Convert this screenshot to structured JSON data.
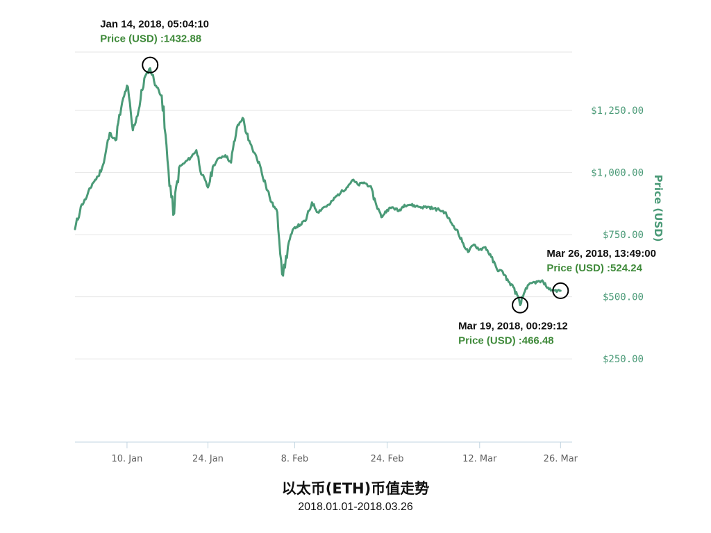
{
  "chart_data": {
    "type": "line",
    "title": "以太币(ETH)币值走势",
    "subtitle": "2018.01.01-2018.03.26",
    "ylabel": "Price (USD)",
    "xlabel": "",
    "y_axis_side": "right",
    "grid": true,
    "ylim": [
      -85,
      1485
    ],
    "xlim": [
      "2018-01-01",
      "2018-03-28"
    ],
    "y_ticks": [
      {
        "value": 250,
        "label": "$250.00"
      },
      {
        "value": 500,
        "label": "$500.00"
      },
      {
        "value": 750,
        "label": "$750.00"
      },
      {
        "value": 1000,
        "label": "$1,000.00"
      },
      {
        "value": 1250,
        "label": "$1,250.00"
      }
    ],
    "x_ticks": [
      {
        "date": "2018-01-10",
        "label": "10. Jan"
      },
      {
        "date": "2018-01-24",
        "label": "24. Jan"
      },
      {
        "date": "2018-02-08",
        "label": "8. Feb"
      },
      {
        "date": "2018-02-24",
        "label": "24. Feb"
      },
      {
        "date": "2018-03-12",
        "label": "12. Mar"
      },
      {
        "date": "2018-03-26",
        "label": "26. Mar"
      }
    ],
    "series": [
      {
        "color": "#4a9a77",
        "points": [
          [
            "2018-01-01",
            772
          ],
          [
            "2018-01-02",
            862
          ],
          [
            "2018-01-03",
            900
          ],
          [
            "2018-01-04",
            955
          ],
          [
            "2018-01-05",
            985
          ],
          [
            "2018-01-06",
            1040
          ],
          [
            "2018-01-07",
            1160
          ],
          [
            "2018-01-08",
            1130
          ],
          [
            "2018-01-09",
            1260
          ],
          [
            "2018-01-10",
            1350
          ],
          [
            "2018-01-11",
            1170
          ],
          [
            "2018-01-12",
            1250
          ],
          [
            "2018-01-13",
            1380
          ],
          [
            "2018-01-14",
            1420
          ],
          [
            "2018-01-15",
            1350
          ],
          [
            "2018-01-16",
            1310
          ],
          [
            "2018-01-17",
            1050
          ],
          [
            "2018-01-18",
            830
          ],
          [
            "2018-01-19",
            1020
          ],
          [
            "2018-01-20",
            1040
          ],
          [
            "2018-01-21",
            1060
          ],
          [
            "2018-01-22",
            1090
          ],
          [
            "2018-01-23",
            990
          ],
          [
            "2018-01-24",
            940
          ],
          [
            "2018-01-25",
            1030
          ],
          [
            "2018-01-26",
            1060
          ],
          [
            "2018-01-27",
            1070
          ],
          [
            "2018-01-28",
            1040
          ],
          [
            "2018-01-29",
            1180
          ],
          [
            "2018-01-30",
            1220
          ],
          [
            "2018-01-31",
            1130
          ],
          [
            "2018-02-01",
            1080
          ],
          [
            "2018-02-02",
            1030
          ],
          [
            "2018-02-03",
            950
          ],
          [
            "2018-02-04",
            880
          ],
          [
            "2018-02-05",
            840
          ],
          [
            "2018-02-06",
            585
          ],
          [
            "2018-02-07",
            720
          ],
          [
            "2018-02-08",
            780
          ],
          [
            "2018-02-09",
            790
          ],
          [
            "2018-02-10",
            810
          ],
          [
            "2018-02-11",
            880
          ],
          [
            "2018-02-12",
            840
          ],
          [
            "2018-02-13",
            860
          ],
          [
            "2018-02-14",
            870
          ],
          [
            "2018-02-15",
            900
          ],
          [
            "2018-02-16",
            920
          ],
          [
            "2018-02-17",
            940
          ],
          [
            "2018-02-18",
            970
          ],
          [
            "2018-02-19",
            950
          ],
          [
            "2018-02-20",
            960
          ],
          [
            "2018-02-21",
            945
          ],
          [
            "2018-02-22",
            880
          ],
          [
            "2018-02-23",
            820
          ],
          [
            "2018-02-24",
            850
          ],
          [
            "2018-02-25",
            860
          ],
          [
            "2018-02-26",
            845
          ],
          [
            "2018-02-27",
            870
          ],
          [
            "2018-02-28",
            870
          ],
          [
            "2018-03-01",
            865
          ],
          [
            "2018-03-02",
            860
          ],
          [
            "2018-03-03",
            862
          ],
          [
            "2018-03-04",
            855
          ],
          [
            "2018-03-05",
            850
          ],
          [
            "2018-03-06",
            840
          ],
          [
            "2018-03-07",
            800
          ],
          [
            "2018-03-08",
            770
          ],
          [
            "2018-03-09",
            720
          ],
          [
            "2018-03-10",
            680
          ],
          [
            "2018-03-11",
            710
          ],
          [
            "2018-03-12",
            690
          ],
          [
            "2018-03-13",
            700
          ],
          [
            "2018-03-14",
            660
          ],
          [
            "2018-03-15",
            610
          ],
          [
            "2018-03-16",
            600
          ],
          [
            "2018-03-17",
            560
          ],
          [
            "2018-03-18",
            535
          ],
          [
            "2018-03-19",
            466.48
          ],
          [
            "2018-03-20",
            535
          ],
          [
            "2018-03-21",
            555
          ],
          [
            "2018-03-22",
            560
          ],
          [
            "2018-03-23",
            560
          ],
          [
            "2018-03-24",
            530
          ],
          [
            "2018-03-25",
            525
          ],
          [
            "2018-03-26",
            524.24
          ]
        ]
      }
    ],
    "annotations": [
      {
        "date_label": "Jan 14, 2018, 05:04:10",
        "price_label": "Price (USD) :1432.88",
        "x": "2018-01-14",
        "y": 1432.88,
        "text_side": "above"
      },
      {
        "date_label": "Mar 19, 2018, 00:29:12",
        "price_label": "Price (USD) :466.48",
        "x": "2018-03-19",
        "y": 466.48,
        "text_side": "below"
      },
      {
        "date_label": "Mar 26, 2018, 13:49:00",
        "price_label": "Price (USD) :524.24",
        "x": "2018-03-26",
        "y": 524.24,
        "text_side": "above"
      }
    ]
  }
}
